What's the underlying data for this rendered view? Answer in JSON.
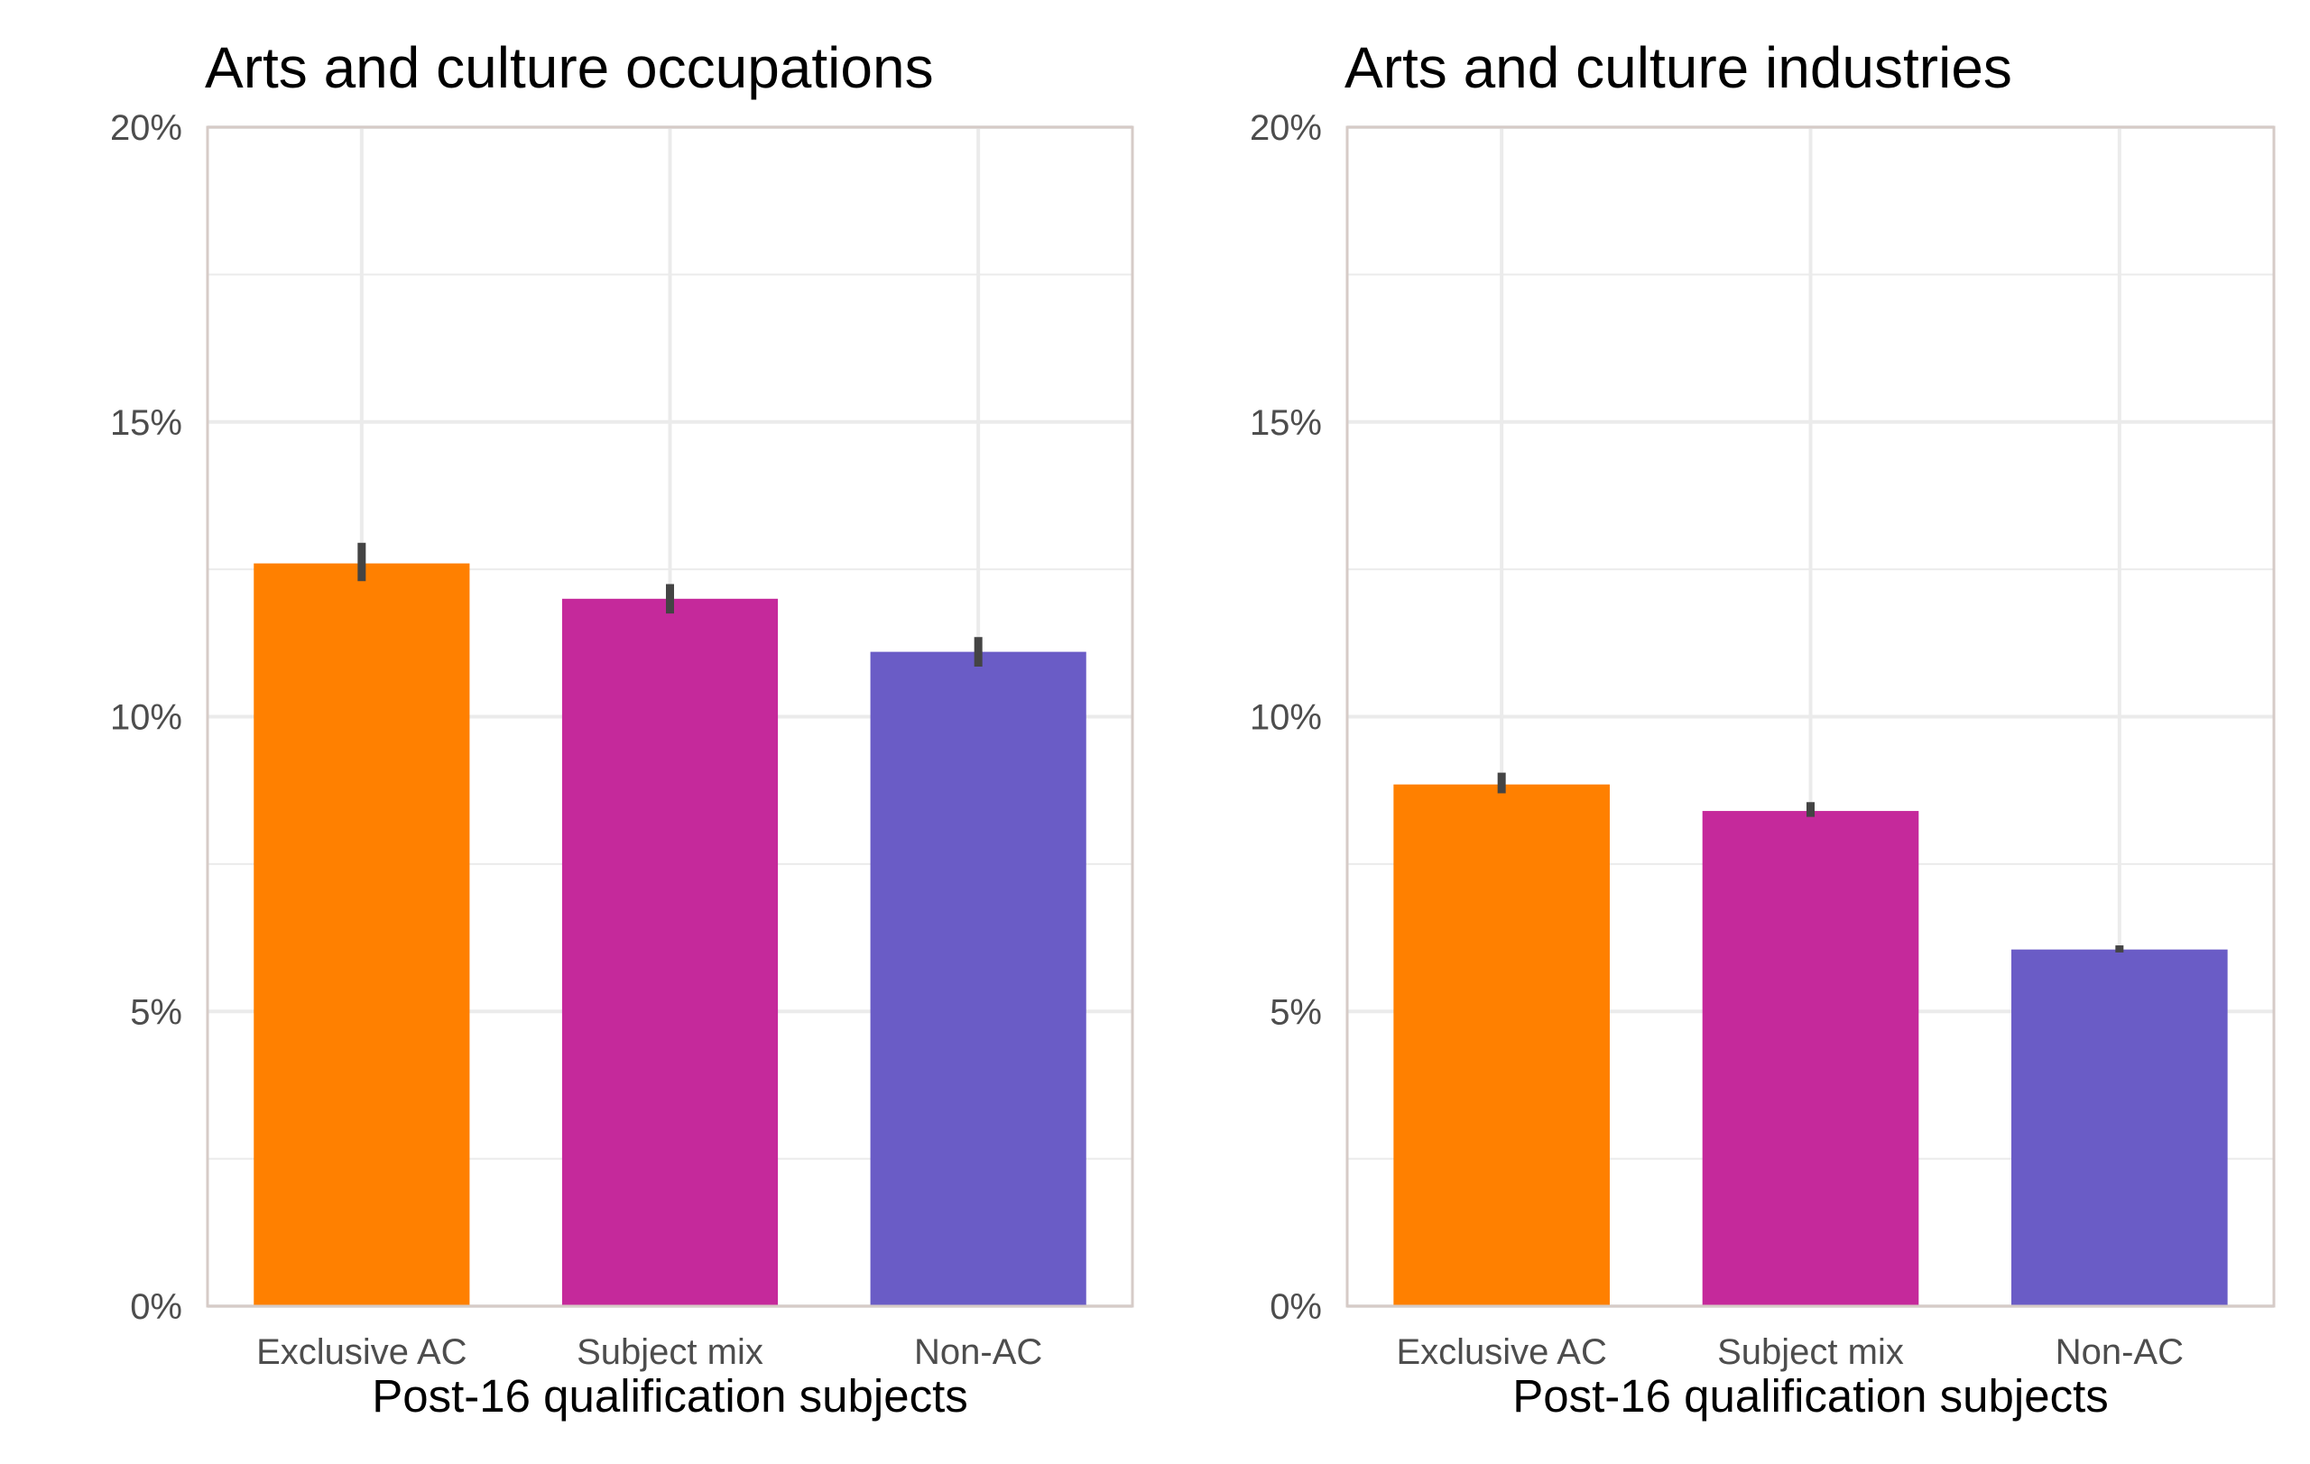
{
  "chart_data": [
    {
      "type": "bar",
      "title": "Arts and culture occupations",
      "xlabel": "Post-16 qualification subjects",
      "ylabel": "",
      "categories": [
        "Exclusive AC",
        "Subject mix",
        "Non-AC"
      ],
      "values": [
        12.6,
        12.0,
        11.1
      ],
      "error_bars": [
        [
          12.3,
          12.95
        ],
        [
          11.75,
          12.25
        ],
        [
          10.85,
          11.35
        ]
      ],
      "colors": [
        "#ff8000",
        "#c5299b",
        "#6a5cc6"
      ],
      "ylim": [
        0,
        20
      ],
      "yticks": [
        "0%",
        "5%",
        "10%",
        "15%",
        "20%"
      ],
      "grid": true,
      "legend": "none"
    },
    {
      "type": "bar",
      "title": "Arts and culture industries",
      "xlabel": "Post-16 qualification subjects",
      "ylabel": "",
      "categories": [
        "Exclusive AC",
        "Subject mix",
        "Non-AC"
      ],
      "values": [
        8.85,
        8.4,
        6.05
      ],
      "error_bars": [
        [
          8.7,
          9.05
        ],
        [
          8.3,
          8.55
        ],
        [
          6.0,
          6.12
        ]
      ],
      "colors": [
        "#ff8000",
        "#c5299b",
        "#6a5cc6"
      ],
      "ylim": [
        0,
        20
      ],
      "yticks": [
        "0%",
        "5%",
        "10%",
        "15%",
        "20%"
      ],
      "grid": true,
      "legend": "none"
    }
  ],
  "style": {
    "grid_color": "#ebebeb",
    "panel_border_color": "#d6cbc7",
    "error_bar_color": "#444444"
  }
}
